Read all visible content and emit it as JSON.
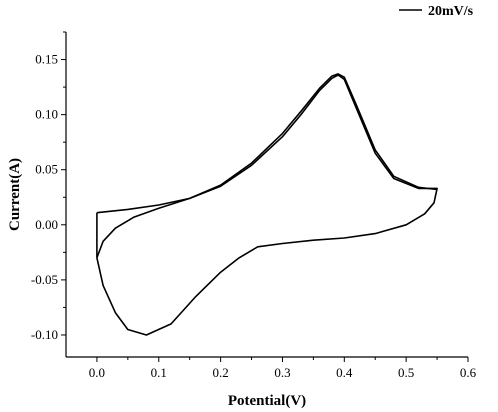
{
  "chart_data": {
    "type": "line",
    "title": "",
    "xlabel": "Potential(V)",
    "ylabel": "Current(A)",
    "xlim": [
      -0.05,
      0.6
    ],
    "ylim": [
      -0.12,
      0.175
    ],
    "xticks": [
      0.0,
      0.1,
      0.2,
      0.3,
      0.4,
      0.5,
      0.6
    ],
    "xtick_labels": [
      "0.0",
      "0.1",
      "0.2",
      "0.3",
      "0.4",
      "0.5",
      "0.6"
    ],
    "yticks": [
      -0.1,
      -0.05,
      0.0,
      0.05,
      0.1,
      0.15
    ],
    "ytick_labels": [
      "-0.10",
      "-0.05",
      "0.00",
      "0.05",
      "0.10",
      "0.15"
    ],
    "grid": false,
    "legend": {
      "position": "top-right",
      "entries": [
        "20mV/s"
      ]
    },
    "series": [
      {
        "name": "20mV/s",
        "color": "#000000",
        "cycles": [
          [
            [
              0.0,
              -0.03
            ],
            [
              0.01,
              -0.015
            ],
            [
              0.03,
              -0.003
            ],
            [
              0.06,
              0.007
            ],
            [
              0.1,
              0.015
            ],
            [
              0.15,
              0.024
            ],
            [
              0.2,
              0.035
            ],
            [
              0.25,
              0.054
            ],
            [
              0.3,
              0.08
            ],
            [
              0.33,
              0.1
            ],
            [
              0.36,
              0.122
            ],
            [
              0.38,
              0.133
            ],
            [
              0.39,
              0.136
            ],
            [
              0.4,
              0.132
            ],
            [
              0.42,
              0.105
            ],
            [
              0.45,
              0.065
            ],
            [
              0.48,
              0.042
            ],
            [
              0.52,
              0.033
            ],
            [
              0.55,
              0.033
            ],
            [
              0.545,
              0.02
            ],
            [
              0.53,
              0.01
            ],
            [
              0.5,
              0.0
            ],
            [
              0.45,
              -0.008
            ],
            [
              0.4,
              -0.012
            ],
            [
              0.35,
              -0.014
            ],
            [
              0.3,
              -0.017
            ],
            [
              0.26,
              -0.02
            ],
            [
              0.23,
              -0.03
            ],
            [
              0.2,
              -0.043
            ],
            [
              0.16,
              -0.065
            ],
            [
              0.12,
              -0.09
            ],
            [
              0.08,
              -0.1
            ],
            [
              0.05,
              -0.095
            ],
            [
              0.03,
              -0.08
            ],
            [
              0.01,
              -0.055
            ],
            [
              0.0,
              -0.03
            ]
          ],
          [
            [
              0.0,
              0.011
            ],
            [
              0.0,
              -0.03
            ]
          ],
          [
            [
              0.0,
              0.011
            ],
            [
              0.05,
              0.014
            ],
            [
              0.1,
              0.018
            ],
            [
              0.15,
              0.024
            ],
            [
              0.2,
              0.036
            ],
            [
              0.25,
              0.056
            ],
            [
              0.3,
              0.083
            ],
            [
              0.33,
              0.103
            ],
            [
              0.36,
              0.124
            ],
            [
              0.38,
              0.135
            ],
            [
              0.39,
              0.137
            ],
            [
              0.4,
              0.134
            ],
            [
              0.42,
              0.108
            ],
            [
              0.45,
              0.068
            ],
            [
              0.48,
              0.044
            ],
            [
              0.52,
              0.034
            ],
            [
              0.55,
              0.032
            ]
          ]
        ]
      }
    ]
  }
}
